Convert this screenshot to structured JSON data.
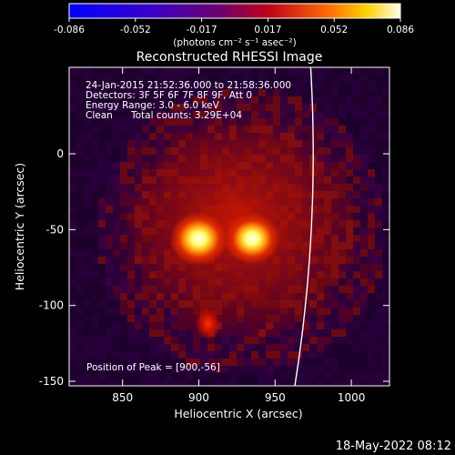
{
  "chart_data": {
    "type": "heatmap",
    "title": "Reconstructed RHESSI Image",
    "xlabel": "Heliocentric X (arcsec)",
    "ylabel": "Heliocentric Y (arcsec)",
    "xlim": [
      815,
      1025
    ],
    "ylim": [
      -153,
      57
    ],
    "x_ticks": [
      850,
      900,
      950,
      1000
    ],
    "y_ticks": [
      0,
      -50,
      -100,
      -150
    ],
    "colorbar": {
      "colormap": "black-purple-red-orange-yellow-white",
      "ticks": [
        "-0.086",
        "-0.052",
        "-0.017",
        "0.017",
        "0.052",
        "0.086"
      ],
      "range": [
        -0.086,
        0.086
      ],
      "unit_label": "(photons cm⁻² s⁻¹ asec⁻²)"
    },
    "annotations": {
      "time": "24-Jan-2015 21:52:36.000 to 21:58:36.000",
      "detectors": "Detectors: 3F 5F 6F 7F 8F 9F, Att 0",
      "energy": "Energy Range: 3.0 - 6.0 keV",
      "clean": "Clean",
      "counts": "Total counts: 3.29E+04",
      "peak": "Position of Peak = [900,-56]"
    },
    "sources": [
      {
        "x": 900,
        "y": -56,
        "relative_intensity": 1.0
      },
      {
        "x": 935,
        "y": -56,
        "relative_intensity": 0.95
      },
      {
        "x": 906,
        "y": -112,
        "relative_intensity": 0.35
      }
    ],
    "limb": true
  },
  "footer": {
    "timestamp": "18-May-2022 08:12"
  }
}
